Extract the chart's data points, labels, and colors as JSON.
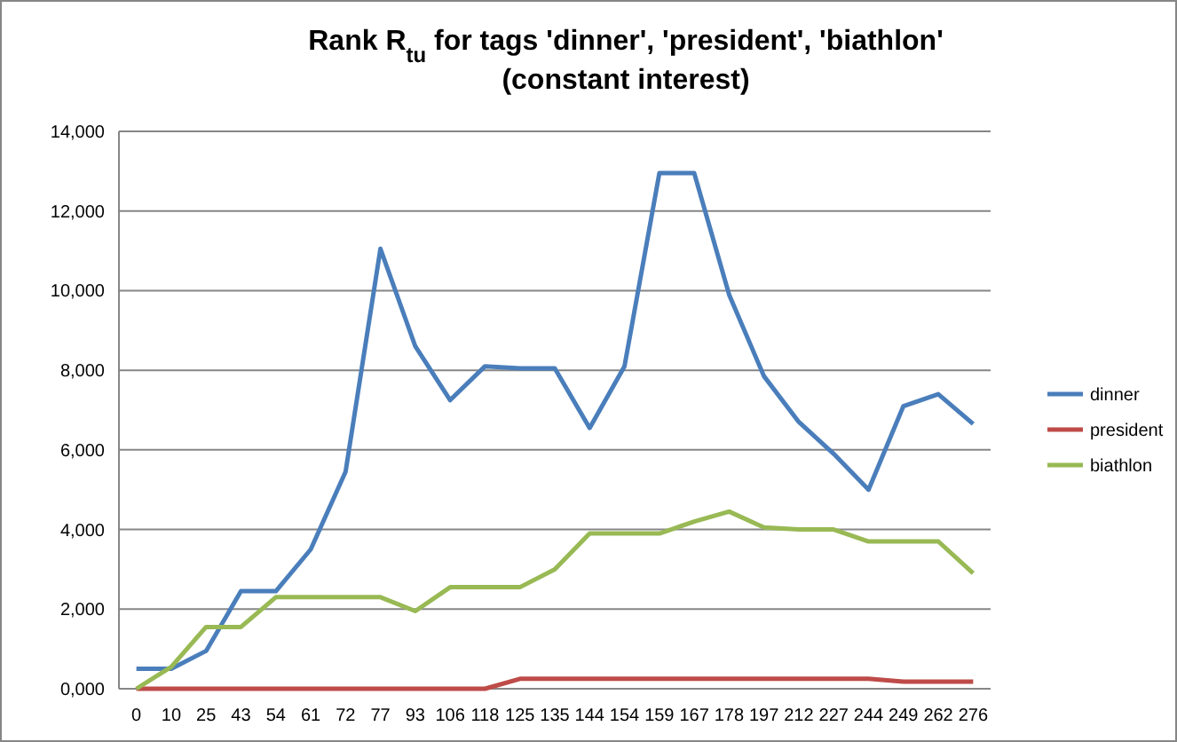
{
  "chart_data": {
    "type": "line",
    "title": "Rank R$_{tu}$ for tags 'dinner', 'president', 'biathlon'",
    "subtitle": "(constant interest)",
    "categories": [
      "0",
      "10",
      "25",
      "43",
      "54",
      "61",
      "72",
      "77",
      "93",
      "106",
      "118",
      "125",
      "135",
      "144",
      "154",
      "159",
      "167",
      "178",
      "197",
      "212",
      "227",
      "244",
      "249",
      "262",
      "276"
    ],
    "series": [
      {
        "name": "dinner",
        "color": "#4a7ebb",
        "values": [
          500,
          500,
          950,
          2450,
          2450,
          3500,
          5450,
          11050,
          8600,
          7250,
          8100,
          8050,
          8050,
          6550,
          8100,
          12950,
          12950,
          9900,
          7850,
          6700,
          5900,
          5000,
          7100,
          7400,
          6650
        ]
      },
      {
        "name": "president",
        "color": "#be4b48",
        "values": [
          0,
          0,
          0,
          0,
          0,
          0,
          0,
          0,
          0,
          0,
          0,
          250,
          250,
          250,
          250,
          250,
          250,
          250,
          250,
          250,
          250,
          250,
          180,
          180,
          180
        ]
      },
      {
        "name": "biathlon",
        "color": "#98b954",
        "values": [
          0,
          550,
          1550,
          1550,
          2300,
          2300,
          2300,
          2300,
          1950,
          2550,
          2550,
          2550,
          3000,
          3900,
          3900,
          3900,
          4200,
          4450,
          4050,
          4000,
          4000,
          3700,
          3700,
          3700,
          2900
        ]
      }
    ],
    "ylim": [
      0,
      14000
    ],
    "yticks": [
      {
        "value": 0,
        "label": "0,000"
      },
      {
        "value": 2000,
        "label": "2,000"
      },
      {
        "value": 4000,
        "label": "4,000"
      },
      {
        "value": 6000,
        "label": "6,000"
      },
      {
        "value": 8000,
        "label": "8,000"
      },
      {
        "value": 10000,
        "label": "10,000"
      },
      {
        "value": 12000,
        "label": "12,000"
      },
      {
        "value": 14000,
        "label": "14,000"
      }
    ],
    "grid": "y",
    "legend": "right",
    "marker": "none",
    "line_style": "solid"
  }
}
